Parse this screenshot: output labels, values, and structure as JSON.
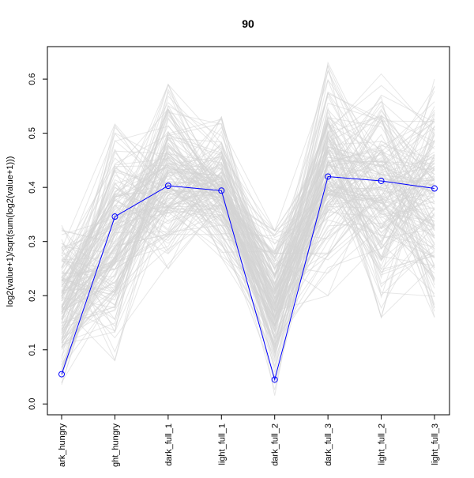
{
  "chart_data": {
    "type": "line",
    "title": "90",
    "xlabel": "",
    "ylabel": "log2(value+1)/sqrt(sum(log2(value+1)))",
    "categories": [
      "dark_hungry",
      "light_hungry",
      "dark_full_1",
      "light_full_1",
      "dark_full_2",
      "dark_full_3",
      "light_full_2",
      "light_full_3"
    ],
    "category_tick_texts": [
      "ark_hungry",
      "ght_hungry",
      "dark_full_1",
      "light_full_1",
      "dark_full_2",
      "dark_full_3",
      "light_full_2",
      "light_full_3"
    ],
    "ylim": [
      -0.02,
      0.66
    ],
    "yticks": [
      0.0,
      0.1,
      0.2,
      0.3,
      0.4,
      0.5,
      0.6
    ],
    "ytick_labels": [
      "0.0",
      "0.1",
      "0.2",
      "0.3",
      "0.4",
      "0.5",
      "0.6"
    ],
    "grid": false,
    "legend": "none",
    "highlight_color": "#0000ff",
    "background_color": "#d3d3d3",
    "series": [
      {
        "values": [
          0.055,
          0.346,
          0.403,
          0.394,
          0.045,
          0.42,
          0.412,
          0.398
        ]
      }
    ],
    "background_series": {
      "count": 160,
      "ranges": [
        [
          0.0,
          0.33
        ],
        [
          0.08,
          0.54
        ],
        [
          0.25,
          0.59
        ],
        [
          0.27,
          0.53
        ],
        [
          0.0,
          0.32
        ],
        [
          0.2,
          0.64
        ],
        [
          0.16,
          0.62
        ],
        [
          0.16,
          0.6
        ]
      ],
      "centers": [
        0.1,
        0.35,
        0.41,
        0.4,
        0.08,
        0.42,
        0.41,
        0.4
      ]
    }
  }
}
